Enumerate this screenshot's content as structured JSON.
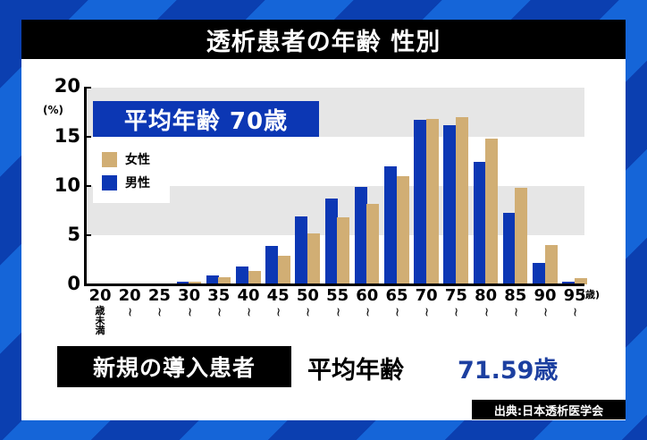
{
  "title": "透析患者の年齢 性別",
  "average_box": "平均年齢  70歳",
  "legend": {
    "female": {
      "label": "女性",
      "color": "#d1ae74"
    },
    "male": {
      "label": "男性",
      "color": "#0c37b4"
    }
  },
  "y_axis": {
    "ticks": [
      "0",
      "5",
      "10",
      "15",
      "20"
    ],
    "unit": "(%)"
  },
  "x_axis": {
    "unit": "(歳)",
    "first_sub": "歳未満"
  },
  "bottom": {
    "label": "新規の導入患者",
    "avg_label": "平均年齢",
    "avg_value": "71.59歳"
  },
  "source": "出典:日本透析医学会",
  "chart_data": {
    "type": "bar",
    "title": "透析患者の年齢 性別",
    "xlabel": "(歳)",
    "ylabel": "(%)",
    "ylim": [
      0,
      20
    ],
    "yticks": [
      0,
      5,
      10,
      15,
      20
    ],
    "grid": "alternating gray bands at 5-10 and 15-20",
    "legend_position": "upper left",
    "annotation": "平均年齢 70歳",
    "categories": [
      "20歳未満",
      "20~",
      "25~",
      "30~",
      "35~",
      "40~",
      "45~",
      "50~",
      "55~",
      "60~",
      "65~",
      "70~",
      "75~",
      "80~",
      "85~",
      "90~",
      "95~"
    ],
    "series": [
      {
        "name": "男性",
        "color": "#0c37b4",
        "values": [
          0,
          0,
          0,
          0.3,
          0.9,
          1.8,
          3.9,
          6.9,
          8.7,
          9.9,
          12.0,
          16.7,
          16.2,
          12.5,
          7.3,
          2.2,
          0.3
        ]
      },
      {
        "name": "女性",
        "color": "#d1ae74",
        "values": [
          0,
          0,
          0,
          0.3,
          0.7,
          1.4,
          2.9,
          5.2,
          6.8,
          8.2,
          11.0,
          16.8,
          17.0,
          14.8,
          9.8,
          4.0,
          0.6
        ]
      }
    ],
    "tick_labels": [
      "20",
      "20",
      "25",
      "30",
      "35",
      "40",
      "45",
      "50",
      "55",
      "60",
      "65",
      "70",
      "75",
      "80",
      "85",
      "90",
      "95"
    ]
  }
}
